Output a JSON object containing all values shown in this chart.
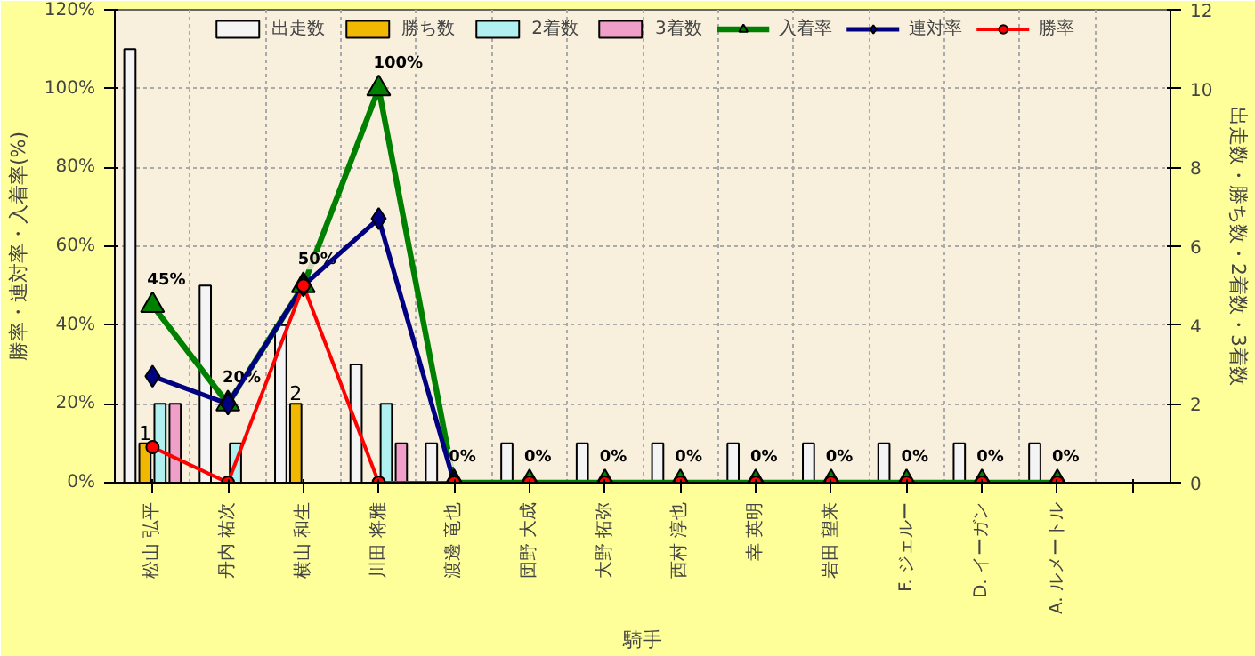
{
  "chart_data": {
    "type": "bar",
    "xlabel": "騎手",
    "ylabel": "勝率・連対率・入着率(%)",
    "y2label": "出走数・勝ち数・2着数・3着数",
    "categories": [
      "松山 弘平",
      "丹内 祐次",
      "横山 和生",
      "川田 将雅",
      "渡邊 竜也",
      "団野 大成",
      "大野 拓弥",
      "西村 淳也",
      "幸 英明",
      "岩田 望来",
      "F. ジェルー",
      "D. イーガン",
      "A. ルメートル",
      null
    ],
    "series": [
      {
        "name": "出走数",
        "axis": "y2",
        "color": "#f4f4f4",
        "values": [
          11,
          5,
          4,
          3,
          1,
          1,
          1,
          1,
          1,
          1,
          1,
          1,
          1,
          null
        ]
      },
      {
        "name": "勝ち数",
        "axis": "y2",
        "color": "#f0b800",
        "values": [
          1,
          0,
          2,
          0,
          0,
          0,
          0,
          0,
          0,
          0,
          0,
          0,
          0,
          null
        ],
        "value_labels": [
          "1",
          null,
          "2",
          null,
          null,
          null,
          null,
          null,
          null,
          null,
          null,
          null,
          null,
          null
        ]
      },
      {
        "name": "2着数",
        "axis": "y2",
        "color": "#b0f0f0",
        "values": [
          2,
          1,
          0,
          2,
          0,
          0,
          0,
          0,
          0,
          0,
          0,
          0,
          0,
          null
        ]
      },
      {
        "name": "3着数",
        "axis": "y2",
        "color": "#f0a0c8",
        "values": [
          2,
          0,
          0,
          1,
          0,
          0,
          0,
          0,
          0,
          0,
          0,
          0,
          0,
          null
        ]
      },
      {
        "name": "入着率",
        "type": "line",
        "marker": "triangle",
        "color": "#008000",
        "values": [
          45,
          20,
          50,
          100,
          0,
          0,
          0,
          0,
          0,
          0,
          0,
          0,
          0,
          null
        ],
        "value_labels": [
          "45%",
          "20%",
          "50%",
          "100%",
          "0%",
          "0%",
          "0%",
          "0%",
          "0%",
          "0%",
          "0%",
          "0%",
          "0%",
          null
        ]
      },
      {
        "name": "連対率",
        "type": "line",
        "marker": "diamond",
        "color": "#000080",
        "values": [
          27,
          20,
          50,
          67,
          0,
          null,
          null,
          null,
          null,
          null,
          null,
          null,
          null,
          null
        ]
      },
      {
        "name": "勝率",
        "type": "line",
        "marker": "circle",
        "color": "#ff0000",
        "values": [
          9,
          0,
          50,
          0,
          0,
          0,
          0,
          0,
          0,
          0,
          0,
          0,
          0,
          null
        ]
      }
    ],
    "ylim": [
      0,
      120
    ],
    "yticks": [
      {
        "value": 0,
        "label": "0%"
      },
      {
        "value": 20,
        "label": "20%"
      },
      {
        "value": 40,
        "label": "40%"
      },
      {
        "value": 60,
        "label": "60%"
      },
      {
        "value": 80,
        "label": "80%"
      },
      {
        "value": 100,
        "label": "100%"
      },
      {
        "value": 120,
        "label": "120%"
      }
    ],
    "y2lim": [
      0,
      12
    ],
    "y2ticks": [
      0,
      2,
      4,
      6,
      8,
      10,
      12
    ],
    "grid": true,
    "legend": "top"
  }
}
